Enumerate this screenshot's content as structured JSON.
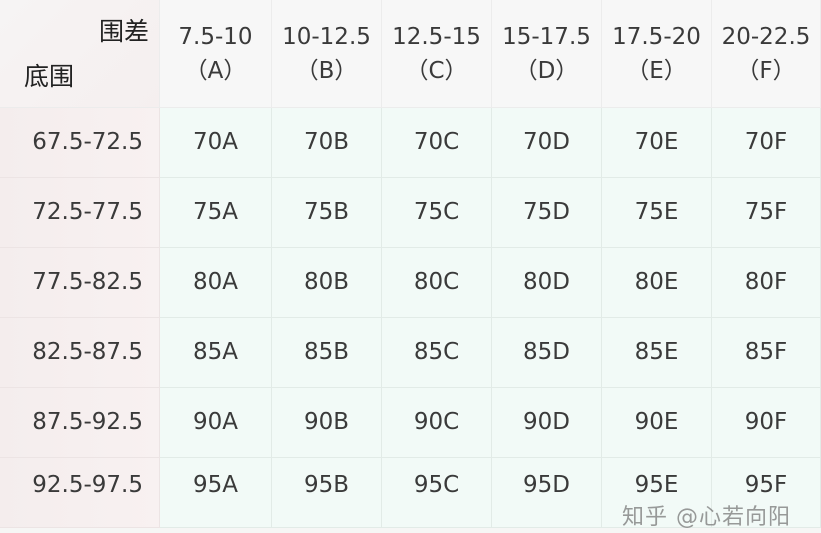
{
  "corner": {
    "top_label": "围差",
    "left_label": "底围"
  },
  "columns": [
    {
      "range": "7.5-10",
      "cup": "（A）"
    },
    {
      "range": "10-12.5",
      "cup": "（B）"
    },
    {
      "range": "12.5-15",
      "cup": "（C）"
    },
    {
      "range": "15-17.5",
      "cup": "（D）"
    },
    {
      "range": "17.5-20",
      "cup": "（E）"
    },
    {
      "range": "20-22.5",
      "cup": "（F）"
    }
  ],
  "rows": [
    {
      "label": "67.5-72.5",
      "cells": [
        "70A",
        "70B",
        "70C",
        "70D",
        "70E",
        "70F"
      ]
    },
    {
      "label": "72.5-77.5",
      "cells": [
        "75A",
        "75B",
        "75C",
        "75D",
        "75E",
        "75F"
      ]
    },
    {
      "label": "77.5-82.5",
      "cells": [
        "80A",
        "80B",
        "80C",
        "80D",
        "80E",
        "80F"
      ]
    },
    {
      "label": "82.5-87.5",
      "cells": [
        "85A",
        "85B",
        "85C",
        "85D",
        "85E",
        "85F"
      ]
    },
    {
      "label": "87.5-92.5",
      "cells": [
        "90A",
        "90B",
        "90C",
        "90D",
        "90E",
        "90F"
      ]
    },
    {
      "label": "92.5-97.5",
      "cells": [
        "95A",
        "95B",
        "95C",
        "95D",
        "95E",
        "95F"
      ]
    }
  ],
  "watermark": "知乎 @心若向阳"
}
